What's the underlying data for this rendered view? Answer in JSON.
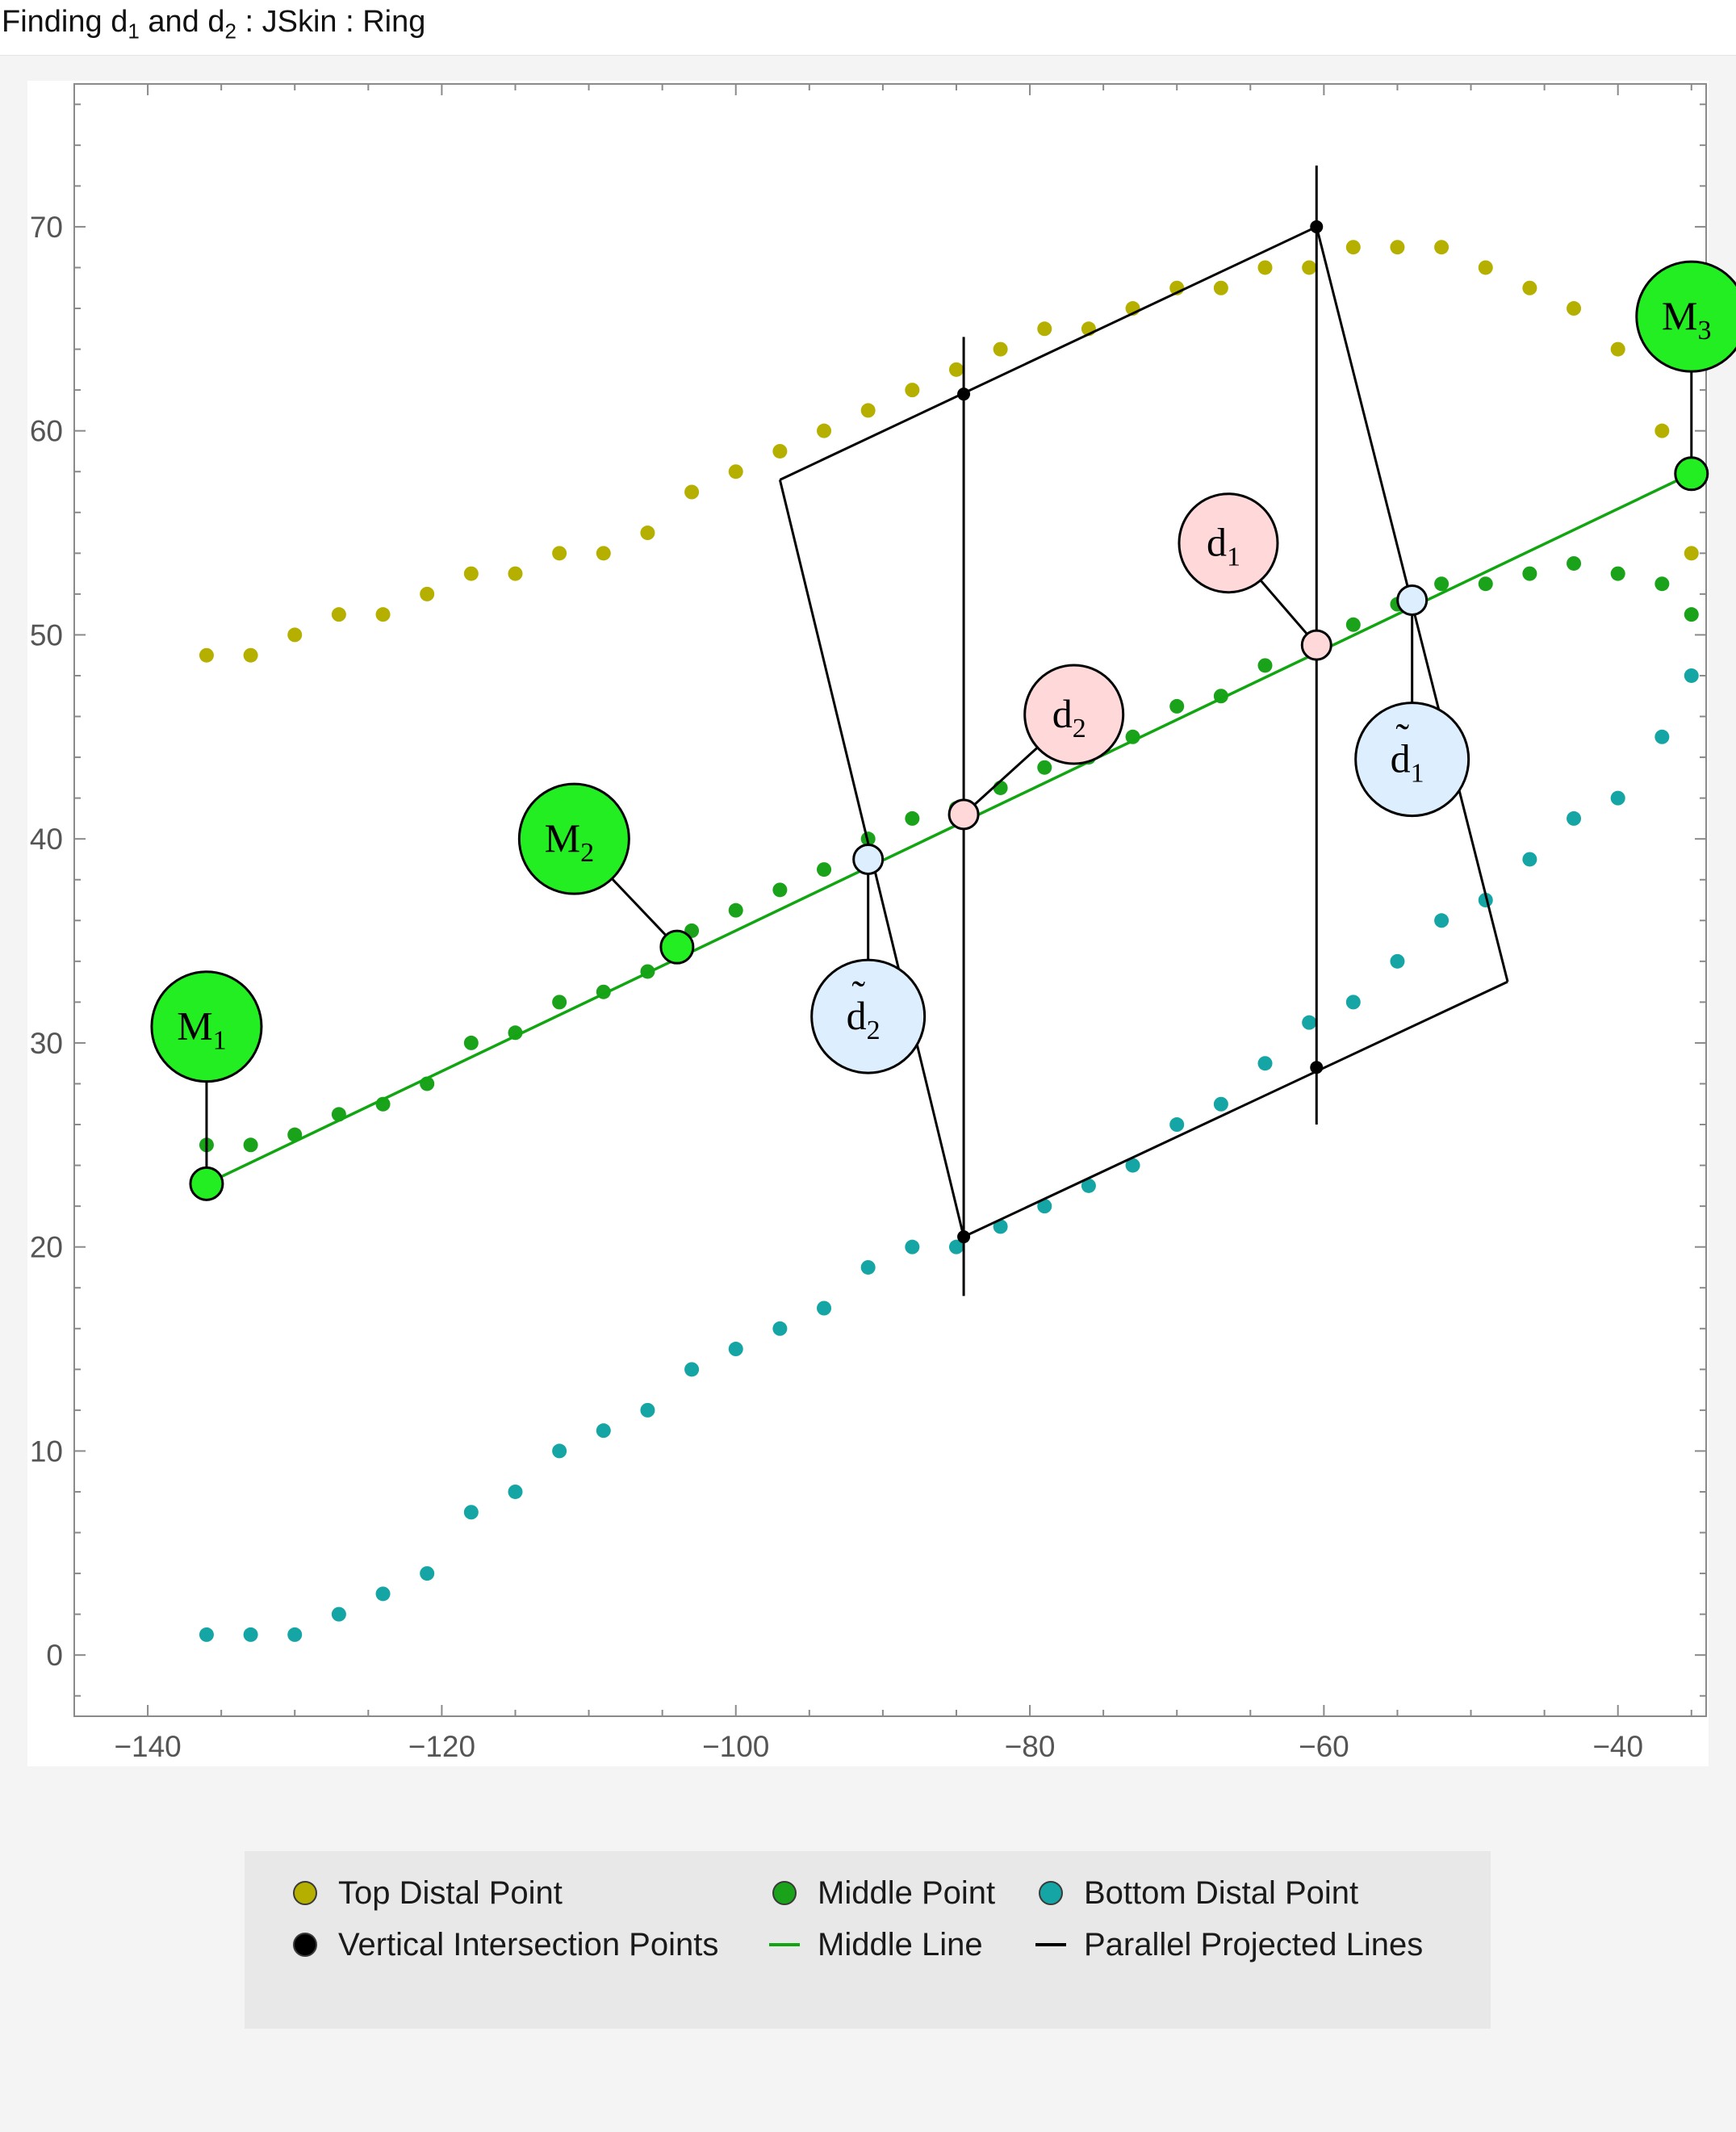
{
  "window": {
    "title_parts": [
      "Finding d",
      "1",
      " and d",
      "2",
      " : JSkin : Ring"
    ]
  },
  "colors": {
    "top": "#b5b000",
    "middle": "#1aa31a",
    "bottom": "#16a5a5",
    "vertical": "#000000",
    "middle_line": "#11a611",
    "projected": "#000000",
    "m_label_fill": "#22ee22",
    "d_label_fill": "#ffd9d9",
    "dt_label_fill": "#ddeeff"
  },
  "chart_data": {
    "type": "scatter",
    "xlim": [
      -145,
      -34
    ],
    "ylim": [
      -3,
      77
    ],
    "x_ticks": [
      -140,
      -120,
      -100,
      -80,
      -60,
      -40
    ],
    "y_ticks": [
      0,
      10,
      20,
      30,
      40,
      50,
      60,
      70
    ],
    "x_tick_labels": [
      "−140",
      "−120",
      "−100",
      "−80",
      "−60",
      "−40"
    ],
    "y_tick_labels": [
      "0",
      "10",
      "20",
      "30",
      "40",
      "50",
      "60",
      "70"
    ],
    "grid": false,
    "legend_position": "bottom",
    "series": [
      {
        "name": "Top Distal Point",
        "x": [
          -136,
          -133,
          -130,
          -127,
          -124,
          -121,
          -118,
          -115,
          -112,
          -109,
          -106,
          -103,
          -100,
          -97,
          -94,
          -91,
          -88,
          -85,
          -82,
          -79,
          -76,
          -73,
          -70,
          -67,
          -64,
          -61,
          -58,
          -55,
          -52,
          -49,
          -46,
          -43,
          -40,
          -37,
          -35
        ],
        "y": [
          49,
          49,
          50,
          51,
          51,
          52,
          53,
          53,
          54,
          54,
          55,
          57,
          58,
          59,
          60,
          61,
          62,
          63,
          64,
          65,
          65,
          66,
          67,
          67,
          68,
          68,
          69,
          69,
          69,
          68,
          67,
          66,
          64,
          60,
          54
        ]
      },
      {
        "name": "Middle Point",
        "x": [
          -136,
          -133,
          -130,
          -127,
          -124,
          -121,
          -118,
          -115,
          -112,
          -109,
          -106,
          -103,
          -100,
          -97,
          -94,
          -91,
          -88,
          -85,
          -82,
          -79,
          -76,
          -73,
          -70,
          -67,
          -64,
          -61,
          -58,
          -55,
          -52,
          -49,
          -46,
          -43,
          -40,
          -37,
          -35
        ],
        "y": [
          25,
          25,
          25.5,
          26.5,
          27,
          28,
          30,
          30.5,
          32,
          32.5,
          33.5,
          35.5,
          36.5,
          37.5,
          38.5,
          40,
          41,
          41.5,
          42.5,
          43.5,
          44,
          45,
          46.5,
          47,
          48.5,
          49.5,
          50.5,
          51.5,
          52.5,
          52.5,
          53,
          53.5,
          53,
          52.5,
          51
        ]
      },
      {
        "name": "Bottom Distal Point",
        "x": [
          -136,
          -133,
          -130,
          -127,
          -124,
          -121,
          -118,
          -115,
          -112,
          -109,
          -106,
          -103,
          -100,
          -97,
          -94,
          -91,
          -88,
          -85,
          -82,
          -79,
          -76,
          -73,
          -70,
          -67,
          -64,
          -61,
          -58,
          -55,
          -52,
          -49,
          -46,
          -43,
          -40,
          -37,
          -35
        ],
        "y": [
          1,
          1,
          1,
          2,
          3,
          4,
          7,
          8,
          10,
          11,
          12,
          14,
          15,
          16,
          17,
          19,
          20,
          20,
          21,
          22,
          23,
          24,
          26,
          27,
          29,
          31,
          32,
          34,
          36,
          37,
          39,
          41,
          42,
          45,
          48
        ]
      },
      {
        "name": "Vertical Intersection Points",
        "x": [
          -84.5,
          -84.5,
          -60.5,
          -60.5
        ],
        "y": [
          61.8,
          20.5,
          70,
          28.8
        ]
      },
      {
        "name": "Middle Line",
        "x": [
          -136,
          -35
        ],
        "y": [
          23.1,
          57.9
        ]
      },
      {
        "name": "Parallel Projected Lines",
        "segments": [
          {
            "x": [
              -97,
              -60.5
            ],
            "y": [
              57.6,
              70
            ]
          },
          {
            "x": [
              -84.5,
              -47.5
            ],
            "y": [
              20.5,
              33
            ]
          },
          {
            "x": [
              -97,
              -84.5
            ],
            "y": [
              57.6,
              20.5
            ]
          },
          {
            "x": [
              -60.5,
              -47.5
            ],
            "y": [
              70,
              33
            ]
          }
        ]
      }
    ],
    "vertical_lines": [
      {
        "x": -84.5,
        "y": [
          17.6,
          64.6
        ]
      },
      {
        "x": -60.5,
        "y": [
          26,
          73
        ]
      }
    ],
    "annotations": [
      {
        "base": "M",
        "sub": "1",
        "tilde": false,
        "kind": "m",
        "anchor": [
          -136,
          23.1
        ],
        "label": [
          -136,
          30.8
        ]
      },
      {
        "base": "M",
        "sub": "2",
        "tilde": false,
        "kind": "m",
        "anchor": [
          -104,
          34.7
        ],
        "label": [
          -111,
          40
        ]
      },
      {
        "base": "M",
        "sub": "3",
        "tilde": false,
        "kind": "m",
        "anchor": [
          -35,
          57.9
        ],
        "label": [
          -35,
          65.6
        ]
      },
      {
        "base": "d",
        "sub": "1",
        "tilde": false,
        "kind": "d",
        "anchor": [
          -60.5,
          49.5
        ],
        "label": [
          -66.5,
          54.5
        ]
      },
      {
        "base": "d",
        "sub": "2",
        "tilde": false,
        "kind": "d",
        "anchor": [
          -84.5,
          41.2
        ],
        "label": [
          -77,
          46.1
        ]
      },
      {
        "base": "d",
        "sub": "1",
        "tilde": true,
        "kind": "dt",
        "anchor": [
          -54,
          51.7
        ],
        "label": [
          -54,
          43.9
        ]
      },
      {
        "base": "d",
        "sub": "2",
        "tilde": true,
        "kind": "dt",
        "anchor": [
          -91,
          39
        ],
        "label": [
          -91,
          31.3
        ]
      }
    ]
  },
  "legend": {
    "items": [
      {
        "label": "Top Distal Point",
        "symbol": "dot",
        "color": "#b5b000"
      },
      {
        "label": "Middle Point",
        "symbol": "dot",
        "color": "#1aa31a"
      },
      {
        "label": "Bottom Distal Point",
        "symbol": "dot",
        "color": "#16a5a5"
      },
      {
        "label": "Vertical Intersection Points",
        "symbol": "dot",
        "color": "#000000"
      },
      {
        "label": "Middle Line",
        "symbol": "line",
        "color": "#11a611"
      },
      {
        "label": "Parallel Projected Lines",
        "symbol": "line",
        "color": "#000000"
      }
    ]
  }
}
